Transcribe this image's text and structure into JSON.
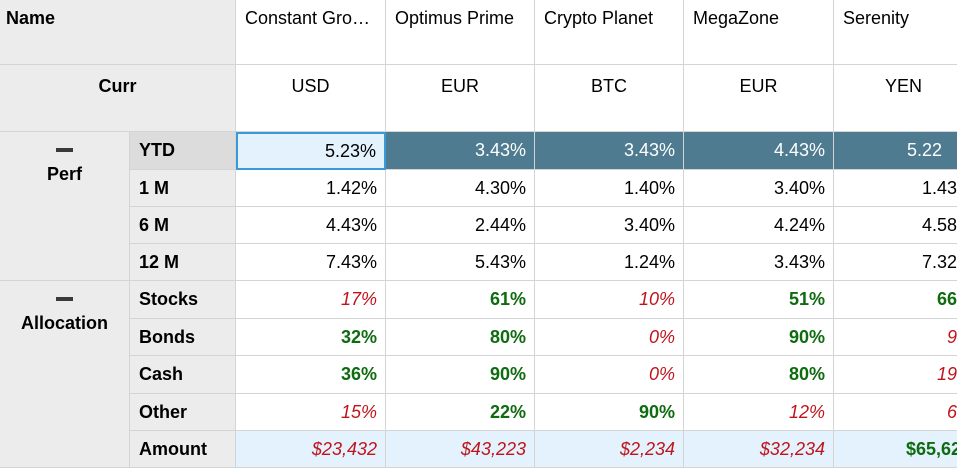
{
  "header": {
    "name_label": "Name",
    "curr_label": "Curr"
  },
  "columns": [
    {
      "name": "Constant Gro…",
      "currency": "USD"
    },
    {
      "name": "Optimus Prime",
      "currency": "EUR"
    },
    {
      "name": "Crypto Planet",
      "currency": "BTC"
    },
    {
      "name": "MegaZone",
      "currency": "EUR"
    },
    {
      "name": "Serenity",
      "currency": "YEN"
    }
  ],
  "groups": {
    "perf": {
      "label": "Perf",
      "collapse_icon": "minus-icon",
      "rows": [
        {
          "label": "YTD",
          "values": [
            "5.23%",
            "3.43%",
            "3.43%",
            "4.43%",
            "5.22"
          ]
        },
        {
          "label": "1 M",
          "values": [
            "1.42%",
            "4.30%",
            "1.40%",
            "3.40%",
            "1.43"
          ]
        },
        {
          "label": "6 M",
          "values": [
            "4.43%",
            "2.44%",
            "3.40%",
            "4.24%",
            "4.58"
          ]
        },
        {
          "label": "12 M",
          "values": [
            "7.43%",
            "5.43%",
            "1.24%",
            "3.43%",
            "7.32"
          ]
        }
      ]
    },
    "allocation": {
      "label": "Allocation",
      "collapse_icon": "minus-icon",
      "rows": [
        {
          "label": "Stocks",
          "values": [
            "17%",
            "61%",
            "10%",
            "51%",
            "66"
          ]
        },
        {
          "label": "Bonds",
          "values": [
            "32%",
            "80%",
            "0%",
            "90%",
            "9"
          ]
        },
        {
          "label": "Cash",
          "values": [
            "36%",
            "90%",
            "0%",
            "80%",
            "19"
          ]
        },
        {
          "label": "Other",
          "values": [
            "15%",
            "22%",
            "90%",
            "12%",
            "6"
          ]
        }
      ]
    }
  },
  "amount": {
    "label": "Amount",
    "values": [
      "$23,432",
      "$43,223",
      "$2,234",
      "$32,234",
      "$65,62"
    ]
  },
  "colors": {
    "positive": "#0f6b10",
    "negative": "#c0141c",
    "selected_row": "#4e7b8f",
    "focus_border": "#3a9ad9",
    "header_bg": "#ececec"
  }
}
